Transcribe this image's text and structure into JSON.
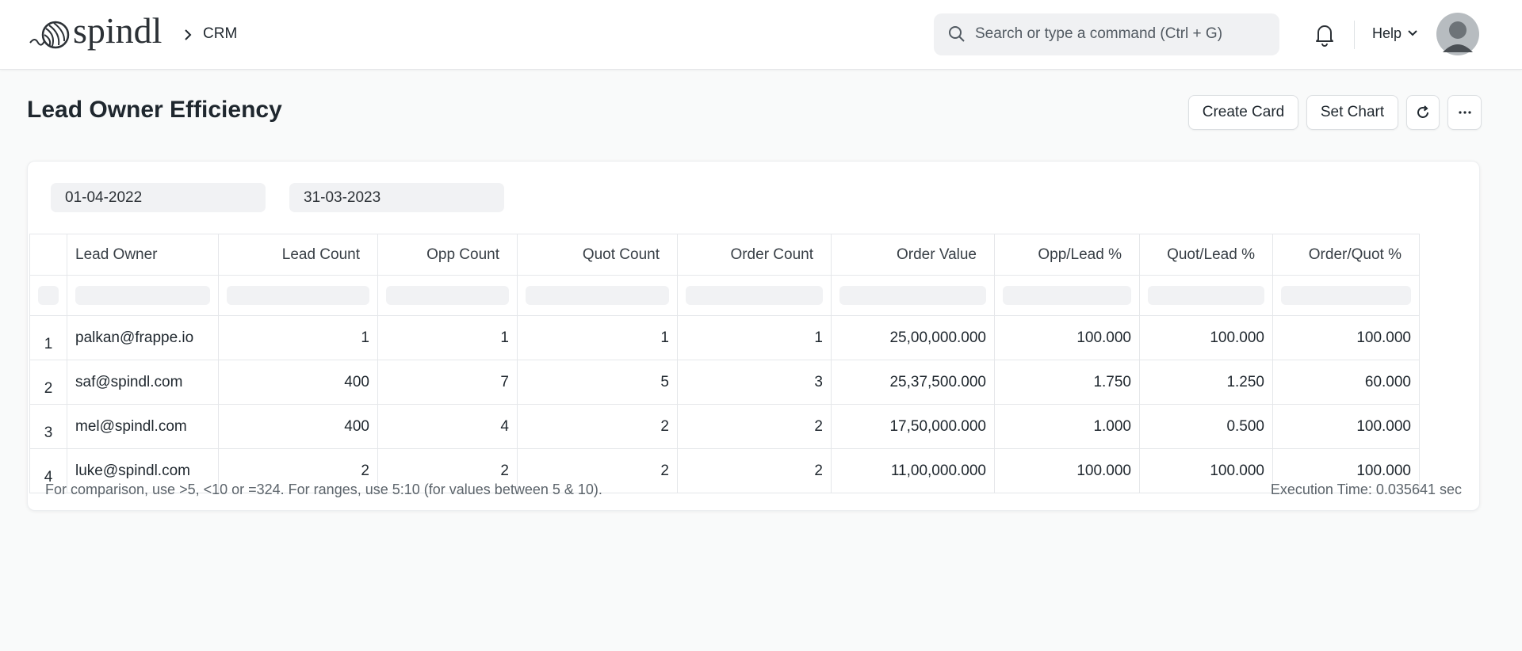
{
  "header": {
    "logo": "spindl",
    "breadcrumb": "CRM",
    "search_placeholder": "Search or type a command (Ctrl + G)",
    "help": "Help"
  },
  "page": {
    "title": "Lead Owner Efficiency",
    "buttons": [
      "Create Card",
      "Set Chart"
    ]
  },
  "filters": [
    "01-04-2022",
    "31-03-2023"
  ],
  "table": {
    "columns": [
      "Lead Owner",
      "Lead Count",
      "Opp Count",
      "Quot Count",
      "Order Count",
      "Order Value",
      "Opp/Lead %",
      "Quot/Lead %",
      "Order/Quot %"
    ],
    "row_numbers": [
      "1",
      "2",
      "3",
      "4"
    ],
    "rows": [
      [
        "palkan@frappe.io",
        "1",
        "1",
        "1",
        "1",
        "25,00,000.000",
        "100.000",
        "100.000",
        "100.000"
      ],
      [
        "saf@spindl.com",
        "400",
        "7",
        "5",
        "3",
        "25,37,500.000",
        "1.750",
        "1.250",
        "60.000"
      ],
      [
        "mel@spindl.com",
        "400",
        "4",
        "2",
        "2",
        "17,50,000.000",
        "1.000",
        "0.500",
        "100.000"
      ],
      [
        "luke@spindl.com",
        "2",
        "2",
        "2",
        "2",
        "11,00,000.000",
        "100.000",
        "100.000",
        "100.000"
      ]
    ]
  },
  "footer": {
    "hint": "For comparison, use >5, <10 or =324. For ranges, use 5:10 (for values between 5 & 10).",
    "execution_time": "Execution Time: 0.035641 sec"
  }
}
